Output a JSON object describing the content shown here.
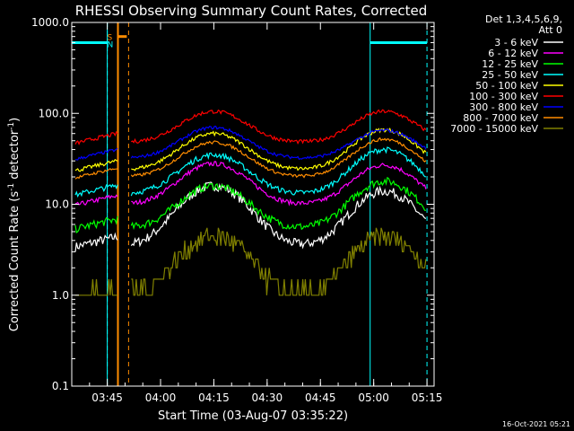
{
  "colors": {
    "background": "#000000",
    "axes": "#ffffff",
    "night": "#00ffff",
    "saa": "#ff8c00"
  },
  "chart_data": {
    "type": "line",
    "title": "RHESSI Observing Summary Count Rates, Corrected",
    "ylabel_main": "Corrected Count Rate (s",
    "ylabel_sup": "-1",
    "ylabel_mid": " detector",
    "ylabel_end": ")",
    "xlabel": "Start Time (03-Aug-07 03:35:22)",
    "footer": "16-Oct-2021 05:21",
    "y_scale": "log",
    "ylim": [
      0.1,
      1000
    ],
    "xlim_minutes_after_0335": [
      0,
      102
    ],
    "x_ticks": [
      {
        "label": "03:45",
        "t": 10
      },
      {
        "label": "04:00",
        "t": 25
      },
      {
        "label": "04:15",
        "t": 40
      },
      {
        "label": "04:30",
        "t": 55
      },
      {
        "label": "04:45",
        "t": 70
      },
      {
        "label": "05:00",
        "t": 85
      },
      {
        "label": "05:15",
        "t": 100
      }
    ],
    "y_ticks": [
      {
        "label": "1000.0",
        "v": 1000
      },
      {
        "label": "100.0",
        "v": 100
      },
      {
        "label": "10.0",
        "v": 10
      },
      {
        "label": "1.0",
        "v": 1
      },
      {
        "label": "0.1",
        "v": 0.1
      }
    ],
    "legend_header": [
      "Det 1,3,4,5,6,9,",
      "Att 0"
    ],
    "series": [
      {
        "name": "3 - 6 keV",
        "color": "#ffffff",
        "base": 3.5,
        "peak1": 16,
        "peak2": 14,
        "noise": 0.12
      },
      {
        "name": "6 - 12 keV",
        "color": "#ff00ff",
        "base": 10,
        "peak1": 28,
        "peak2": 27,
        "noise": 0.06
      },
      {
        "name": "12 - 25 keV",
        "color": "#00ff00",
        "base": 5.5,
        "peak1": 16,
        "peak2": 18,
        "noise": 0.1
      },
      {
        "name": "25 - 50 keV",
        "color": "#00ffff",
        "base": 13,
        "peak1": 35,
        "peak2": 40,
        "noise": 0.07
      },
      {
        "name": "50 - 100 keV",
        "color": "#ffff00",
        "base": 24,
        "peak1": 60,
        "peak2": 66,
        "noise": 0.05
      },
      {
        "name": "100 - 300 keV",
        "color": "#ff0000",
        "base": 48,
        "peak1": 105,
        "peak2": 105,
        "noise": 0.05
      },
      {
        "name": "300 - 800 keV",
        "color": "#0000ff",
        "base": 32,
        "peak1": 70,
        "peak2": 65,
        "noise": 0.04
      },
      {
        "name": "800 - 7000 keV",
        "color": "#ff8c00",
        "base": 20,
        "peak1": 48,
        "peak2": 52,
        "noise": 0.04
      },
      {
        "name": "7000 - 15000 keV",
        "color": "#808000",
        "base": 1.0,
        "peak1": 4.5,
        "peak2": 4.5,
        "noise": 0.25
      }
    ],
    "night_intervals_min": [
      [
        0,
        10
      ],
      [
        84,
        100
      ]
    ],
    "night_dashed_min": [
      10,
      100
    ],
    "saa_interval_min": [
      13,
      16
    ],
    "data_gap_min": [
      13,
      16.5
    ],
    "saa_label": "S",
    "night_label": "N"
  }
}
